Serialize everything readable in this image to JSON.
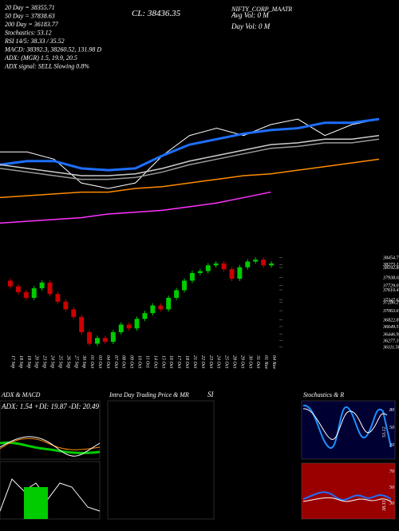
{
  "chart_data": {
    "type": "candlestick",
    "title": "NIFTY_CORP_MAATR",
    "info": [
      "20 Day = 38355.71",
      "50 Day = 37838.63",
      "200 Day = 36183.77",
      "Stochastics: 53.12",
      "RSI 14/5: 38.33 / 35.52",
      "MACD: 38392.3, 38260.52, 131.98 D",
      "ADX: (MGR) 1.5, 19.9, 20.5",
      "ADX signal: SELL Slowing 0.8%"
    ],
    "close_text": "CL: 38436.35",
    "volume_text": [
      "Avg Vol: 0 M",
      "Day Vol: 0 M"
    ],
    "categories": [
      "17 Sep",
      "18 Sep",
      "19 Sep",
      "20 Sep",
      "23 Sep",
      "24 Sep",
      "25 Sep",
      "26 Sep",
      "27 Sep",
      "30 Sep",
      "01 Oct",
      "03 Oct",
      "04 Oct",
      "07 Oct",
      "08 Oct",
      "09 Oct",
      "10 Oct",
      "11 Oct",
      "14 Oct",
      "15 Oct",
      "16 Oct",
      "17 Oct",
      "18 Oct",
      "21 Oct",
      "22 Oct",
      "23 Oct",
      "24 Oct",
      "25 Oct",
      "28 Oct",
      "29 Oct",
      "30 Oct",
      "31 Oct",
      "01 Nov",
      "04 Nov"
    ],
    "open": [
      37850,
      37700,
      37550,
      37400,
      37650,
      37800,
      37500,
      37300,
      37100,
      36900,
      36500,
      36200,
      36350,
      36250,
      36500,
      36700,
      36600,
      36850,
      37000,
      37200,
      37100,
      37400,
      37600,
      37850,
      38050,
      38100,
      38250,
      38300,
      38150,
      37900,
      38200,
      38350,
      38400,
      38250
    ],
    "high": [
      37910,
      37760,
      37610,
      37710,
      37860,
      37860,
      37560,
      37360,
      37160,
      36960,
      36560,
      36410,
      36410,
      36560,
      36760,
      36760,
      36910,
      37060,
      37260,
      37260,
      37460,
      37660,
      37910,
      38110,
      38160,
      38310,
      38360,
      38360,
      38210,
      38260,
      38410,
      38460,
      38460,
      38360
    ],
    "low": [
      37640,
      37490,
      37340,
      37340,
      37590,
      37440,
      37240,
      37040,
      36840,
      36440,
      36140,
      36140,
      36190,
      36190,
      36440,
      36540,
      36540,
      36790,
      36940,
      37040,
      37040,
      37340,
      37540,
      37790,
      37990,
      38040,
      38190,
      38090,
      37840,
      37840,
      38140,
      38290,
      38190,
      38190
    ],
    "close": [
      37700,
      37550,
      37400,
      37650,
      37800,
      37500,
      37300,
      37100,
      36900,
      36500,
      36200,
      36350,
      36250,
      36500,
      36700,
      36600,
      36850,
      37000,
      37200,
      37100,
      37400,
      37600,
      37850,
      38050,
      38100,
      38250,
      38300,
      38150,
      37900,
      38200,
      38350,
      38400,
      38250,
      38300
    ],
    "up_color": "#00cc00",
    "down_color": "#cc0000",
    "ylim": [
      36000,
      38550
    ],
    "yticks": [
      38454.77,
      38273.12,
      38192.84,
      37938.05,
      37729.01,
      37610.4,
      37347.63,
      37286.2,
      37063.6,
      36822.87,
      36649.5,
      36446.92,
      36277.3,
      36111.56
    ],
    "overlay": {
      "ylim": [
        35500,
        39000
      ],
      "series": [
        {
          "name": "Price",
          "color": "#ffffff",
          "values": [
            37900,
            37900,
            37700,
            37050,
            36900,
            37050,
            37800,
            38350,
            38550,
            38350,
            38650,
            38800,
            38350,
            38650,
            38800
          ]
        },
        {
          "name": "20 Day",
          "color": "#1e6fff",
          "values": [
            37550,
            37650,
            37650,
            37450,
            37400,
            37450,
            37800,
            38100,
            38250,
            38400,
            38500,
            38550,
            38700,
            38700,
            38800
          ]
        },
        {
          "name": "50 Day",
          "color": "#cccccc",
          "values": [
            37550,
            37450,
            37350,
            37250,
            37250,
            37300,
            37450,
            37650,
            37800,
            37950,
            38100,
            38150,
            38250,
            38250,
            38350
          ]
        },
        {
          "name": "100 Day",
          "color": "#999999",
          "values": [
            37450,
            37350,
            37250,
            37150,
            37150,
            37200,
            37350,
            37550,
            37700,
            37850,
            38000,
            38050,
            38150,
            38150,
            38250
          ]
        },
        {
          "name": "200 Day",
          "color": "#ff8c00",
          "values": [
            36650,
            36700,
            36750,
            36800,
            36800,
            36900,
            36950,
            37050,
            37150,
            37250,
            37300,
            37400,
            37500,
            37600,
            37700
          ]
        },
        {
          "name": "365 Day",
          "color": "#ff33ff",
          "values": [
            35950,
            36000,
            36050,
            36100,
            36200,
            36250,
            36300,
            36400,
            36500,
            36650,
            36800,
            null,
            null,
            null,
            null
          ]
        }
      ]
    },
    "panels": [
      {
        "title": "ADX  & MACD",
        "text": "ADX: 1.54  +DI: 19.87 -DI: 20.49"
      },
      {
        "title": "Intra  Day Trading Price  & MR",
        "text": "SI"
      },
      {
        "title": "Stochastics & R",
        "text": "SI",
        "levels": [
          "80",
          "50",
          "20"
        ],
        "value": "53.12",
        "rsi_levels": [
          "70",
          "50",
          "30"
        ],
        "rsi_value": "38.33"
      }
    ]
  }
}
